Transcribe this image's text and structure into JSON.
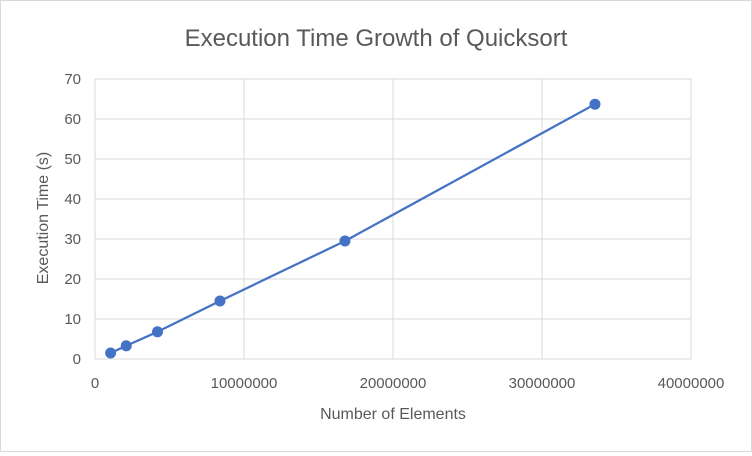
{
  "chart_data": {
    "type": "scatter",
    "title": "Execution Time Growth of Quicksort",
    "xlabel": "Number of Elements",
    "ylabel": "Execution Time (s)",
    "xlim": [
      0,
      40000000
    ],
    "ylim": [
      0,
      70
    ],
    "x_ticks": [
      "0",
      "10000000",
      "20000000",
      "30000000",
      "40000000"
    ],
    "y_ticks": [
      "0",
      "10",
      "20",
      "30",
      "40",
      "50",
      "60",
      "70"
    ],
    "grid": true,
    "legend": "none",
    "series": [
      {
        "color": "#4472c4",
        "x": [
          1048576,
          2097152,
          4194304,
          8388608,
          16777216,
          33554432
        ],
        "y": [
          1.5,
          3.3,
          6.8,
          14.5,
          29.5,
          63.7
        ]
      }
    ]
  },
  "colors": {
    "grid": "#d9d9d9",
    "text": "#595959",
    "series": "#4472c4"
  }
}
